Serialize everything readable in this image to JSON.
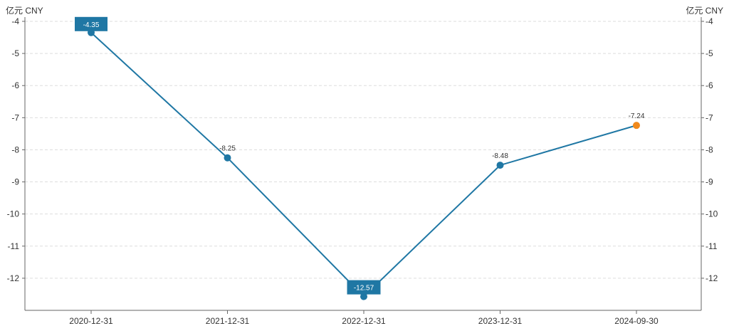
{
  "chart_data": {
    "type": "line",
    "unit_left": "亿元 CNY",
    "unit_right": "亿元 CNY",
    "categories": [
      "2020-12-31",
      "2021-12-31",
      "2022-12-31",
      "2023-12-31",
      "2024-09-30"
    ],
    "series": [
      {
        "values": [
          -4.35,
          -8.25,
          -12.57,
          -8.48,
          -7.24
        ],
        "labels": [
          "-4.35",
          "-8.25",
          "-12.57",
          "-8.48",
          "-7.24"
        ],
        "color": "#1f77a4",
        "last_point_color": "#f0891c"
      }
    ],
    "highlight": {
      "max_index": 0,
      "min_index": 2,
      "fill": "#1f77a4"
    },
    "ylim": [
      -13,
      -4
    ],
    "y_ticks": [
      -4,
      -5,
      -6,
      -7,
      -8,
      -9,
      -10,
      -11,
      -12
    ],
    "grid": true,
    "grid_color": "#dddddd",
    "axis_color": "#666666"
  }
}
